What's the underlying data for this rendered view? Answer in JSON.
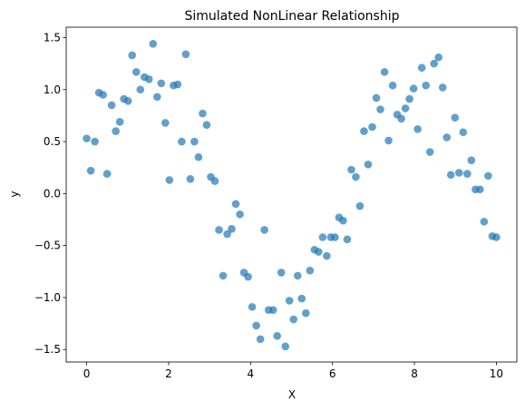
{
  "chart_data": {
    "type": "scatter",
    "title": "Simulated NonLinear Relationship",
    "xlabel": "X",
    "ylabel": "y",
    "xlim": [
      -0.5,
      10.5
    ],
    "ylim": [
      -1.62,
      1.6
    ],
    "xticks": [
      0,
      2,
      4,
      6,
      8,
      10
    ],
    "yticks": [
      -1.5,
      -1.0,
      -0.5,
      0.0,
      0.5,
      1.0,
      1.5
    ],
    "ytick_labels": [
      "−1.5",
      "−1.0",
      "−0.5",
      "0.0",
      "0.5",
      "1.0",
      "1.5"
    ],
    "xtick_labels": [
      "0",
      "2",
      "4",
      "6",
      "8",
      "10"
    ],
    "grid": false,
    "legend": "none",
    "color": "#1f77b4",
    "series": [
      {
        "x": [
          0.0,
          0.1,
          0.2,
          0.3,
          0.4,
          0.5,
          0.61,
          0.71,
          0.81,
          0.91,
          1.01,
          1.11,
          1.21,
          1.31,
          1.41,
          1.52,
          1.62,
          1.72,
          1.82,
          1.92,
          2.02,
          2.12,
          2.22,
          2.32,
          2.42,
          2.53,
          2.63,
          2.73,
          2.83,
          2.93,
          3.03,
          3.13,
          3.23,
          3.33,
          3.43,
          3.54,
          3.64,
          3.74,
          3.84,
          3.94,
          4.04,
          4.14,
          4.24,
          4.34,
          4.44,
          4.55,
          4.65,
          4.75,
          4.85,
          4.95,
          5.05,
          5.15,
          5.25,
          5.35,
          5.45,
          5.56,
          5.66,
          5.76,
          5.86,
          5.96,
          6.06,
          6.16,
          6.26,
          6.36,
          6.46,
          6.57,
          6.67,
          6.77,
          6.87,
          6.97,
          7.07,
          7.17,
          7.27,
          7.37,
          7.47,
          7.58,
          7.68,
          7.78,
          7.88,
          7.98,
          8.08,
          8.18,
          8.28,
          8.38,
          8.48,
          8.59,
          8.69,
          8.79,
          8.89,
          8.99,
          9.09,
          9.19,
          9.29,
          9.39,
          9.49,
          9.6,
          9.7,
          9.8,
          9.9,
          10.0
        ],
        "y": [
          0.53,
          0.22,
          0.5,
          0.97,
          0.95,
          0.19,
          0.85,
          0.6,
          0.69,
          0.91,
          0.89,
          1.33,
          1.17,
          1.0,
          1.12,
          1.1,
          1.44,
          0.93,
          1.06,
          0.68,
          0.13,
          1.04,
          1.05,
          0.5,
          1.34,
          0.14,
          0.5,
          0.35,
          0.77,
          0.66,
          0.16,
          0.12,
          -0.35,
          -0.79,
          -0.39,
          -0.34,
          -0.1,
          -0.2,
          -0.76,
          -0.8,
          -1.09,
          -1.27,
          -1.4,
          -0.35,
          -1.12,
          -1.12,
          -1.37,
          -0.76,
          -1.47,
          -1.03,
          -1.21,
          -0.79,
          -1.01,
          -1.15,
          -0.74,
          -0.54,
          -0.56,
          -0.42,
          -0.6,
          -0.42,
          -0.42,
          -0.23,
          -0.26,
          -0.44,
          0.23,
          0.16,
          -0.12,
          0.6,
          0.28,
          0.64,
          0.92,
          0.81,
          1.17,
          0.51,
          1.04,
          0.76,
          0.72,
          0.82,
          0.91,
          1.01,
          0.62,
          1.21,
          1.04,
          0.4,
          1.25,
          1.31,
          1.02,
          0.54,
          0.18,
          0.73,
          0.2,
          0.59,
          0.19,
          0.32,
          0.04,
          0.04,
          -0.27,
          0.17,
          -0.41,
          -0.42
        ]
      }
    ]
  }
}
